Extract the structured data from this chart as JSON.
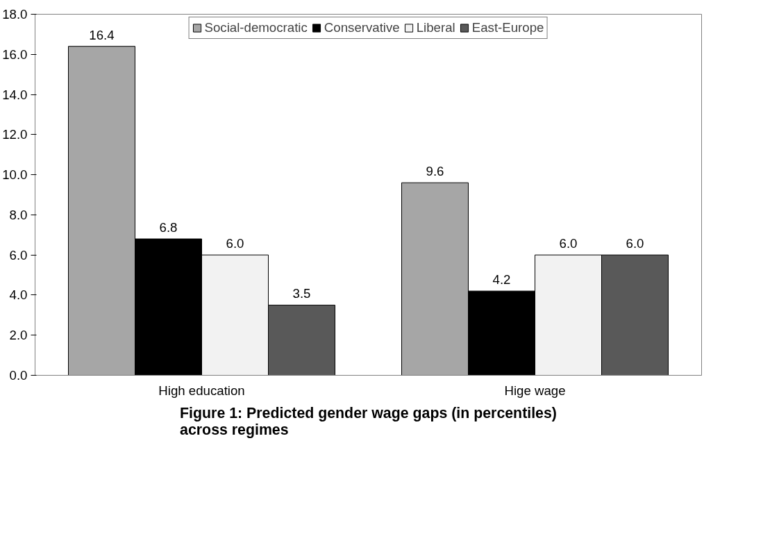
{
  "chart_data": {
    "type": "bar",
    "title": "Figure 1: Predicted gender wage gaps (in percentiles)\nacross regimes",
    "categories": [
      "High education",
      "Hige wage"
    ],
    "series": [
      {
        "name": "Social-democratic",
        "color": "#a6a6a6",
        "values": [
          16.4,
          9.6
        ],
        "value_labels": [
          "16.4",
          "9.6"
        ]
      },
      {
        "name": "Conservative",
        "color": "#000000",
        "values": [
          6.8,
          4.2
        ],
        "value_labels": [
          "6.8",
          "4.2"
        ]
      },
      {
        "name": "Liberal",
        "color": "#f2f2f2",
        "values": [
          6.0,
          6.0
        ],
        "value_labels": [
          "6.0",
          "6.0"
        ]
      },
      {
        "name": "East-Europe",
        "color": "#595959",
        "values": [
          3.5,
          6.0
        ],
        "value_labels": [
          "3.5",
          "6.0"
        ]
      }
    ],
    "ylim": [
      0,
      18
    ],
    "yticks": [
      {
        "value": 0,
        "label": "0.0"
      },
      {
        "value": 2,
        "label": "2.0"
      },
      {
        "value": 4,
        "label": "4.0"
      },
      {
        "value": 6,
        "label": "6.0"
      },
      {
        "value": 8,
        "label": "8.0"
      },
      {
        "value": 10,
        "label": "10.0"
      },
      {
        "value": 12,
        "label": "12.0"
      },
      {
        "value": 14,
        "label": "14.0"
      },
      {
        "value": 16,
        "label": "16.0"
      },
      {
        "value": 18,
        "label": "18.0"
      }
    ],
    "grid": false,
    "legend": "top"
  }
}
